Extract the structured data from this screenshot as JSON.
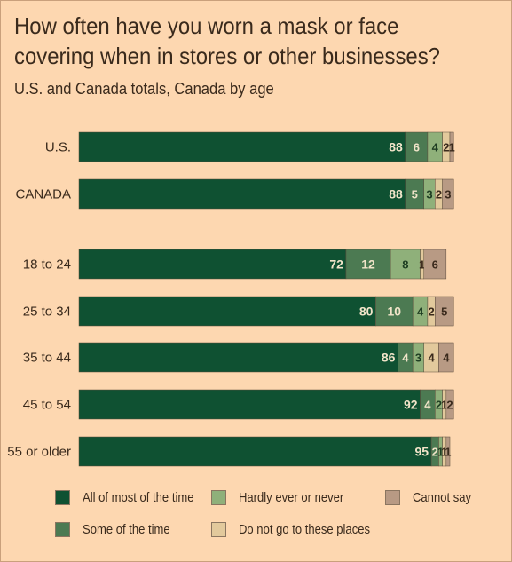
{
  "chart_data": {
    "type": "bar",
    "stacked": true,
    "orientation": "horizontal",
    "title": "How often have you worn a mask or face covering when in stores or other businesses?",
    "subtitle": "U.S. and Canada totals, Canada by age",
    "categories": [
      "U.S.",
      "CANADA",
      "18 to 24",
      "25 to 34",
      "35 to 44",
      "45 to 54",
      "55 or older"
    ],
    "series": [
      {
        "name": "All of most of the time",
        "color": "#0f5132",
        "values": [
          88,
          88,
          72,
          80,
          86,
          92,
          95
        ]
      },
      {
        "name": "Some of the time",
        "color": "#4c7a52",
        "values": [
          6,
          5,
          12,
          10,
          4,
          4,
          2
        ]
      },
      {
        "name": "Hardly ever or never",
        "color": "#8fb07a",
        "values": [
          4,
          3,
          8,
          4,
          3,
          2,
          1
        ]
      },
      {
        "name": "Do not go to these places",
        "color": "#e2c99c",
        "values": [
          2,
          2,
          1,
          2,
          4,
          1,
          1
        ]
      },
      {
        "name": "Cannot say",
        "color": "#b89a84",
        "values": [
          1,
          3,
          6,
          5,
          4,
          2,
          1
        ]
      }
    ],
    "xlim": [
      0,
      100
    ],
    "grid": false,
    "legend_position": "bottom"
  }
}
